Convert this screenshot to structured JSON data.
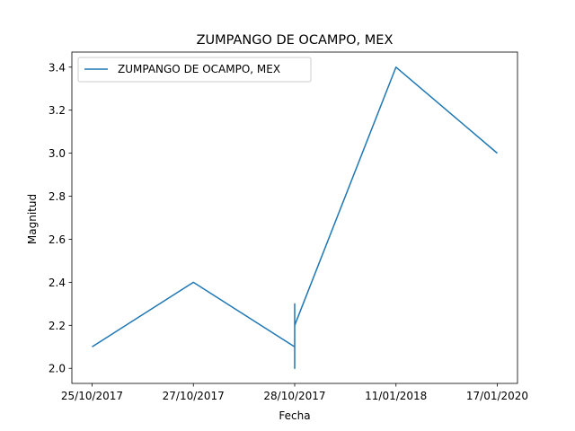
{
  "chart_data": {
    "type": "line",
    "title": "ZUMPANGO DE OCAMPO, MEX",
    "xlabel": "Fecha",
    "ylabel": "Magnitud",
    "categories": [
      "25/10/2017",
      "27/10/2017",
      "28/10/2017",
      "11/01/2018",
      "17/01/2020"
    ],
    "series": [
      {
        "name": "ZUMPANGO DE OCAMPO, MEX",
        "color": "#1f77b4",
        "points": [
          {
            "x": "25/10/2017",
            "y": 2.1
          },
          {
            "x": "27/10/2017",
            "y": 2.4
          },
          {
            "x": "28/10/2017",
            "y": 2.1
          },
          {
            "x": "28/10/2017",
            "y": 2.0
          },
          {
            "x": "28/10/2017",
            "y": 2.3
          },
          {
            "x": "28/10/2017",
            "y": 2.2
          },
          {
            "x": "11/01/2018",
            "y": 3.4
          },
          {
            "x": "17/01/2020",
            "y": 3.0
          }
        ]
      }
    ],
    "ylim": [
      1.93,
      3.47
    ],
    "yticks": [
      2.0,
      2.2,
      2.4,
      2.6,
      2.8,
      3.0,
      3.2,
      3.4
    ],
    "ytick_labels": [
      "2.0",
      "2.2",
      "2.4",
      "2.6",
      "2.8",
      "3.0",
      "3.2",
      "3.4"
    ],
    "grid": false,
    "legend": "upper-left"
  }
}
